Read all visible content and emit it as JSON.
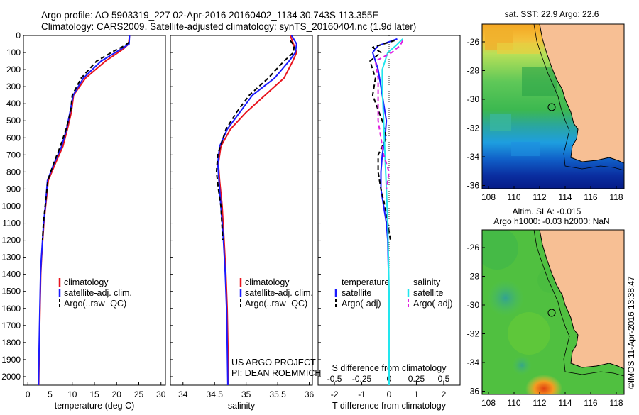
{
  "header": {
    "title_line1": "Argo profile: AO 5903319_227 02-Apr-2016 20160402_1134 30.743S 113.355E",
    "title_line2": "Climatology: CARS2009. Satellite-adjusted climatology: synTS_20160404.nc (1.9d later)"
  },
  "colors": {
    "climatology": "#e8141e",
    "satellite": "#1a1aff",
    "argo": "#000000",
    "salinity_satellite": "#22e6ee",
    "salinity_argo": "#e020e0",
    "land": "#f7bf94"
  },
  "chart_data": [
    {
      "type": "line",
      "xlabel": "temperature (deg C)",
      "ylim": [
        2050,
        0
      ],
      "xlim": [
        -1,
        31
      ],
      "x_ticks": [
        "0",
        "5",
        "10",
        "15",
        "20",
        "25",
        "30"
      ],
      "y_ticks": [
        "0",
        "100",
        "200",
        "300",
        "400",
        "500",
        "600",
        "700",
        "800",
        "900",
        "1000",
        "1100",
        "1200",
        "1300",
        "1400",
        "1500",
        "1600",
        "1700",
        "1800",
        "1900",
        "2000"
      ],
      "legend": [
        "climatology",
        "satellite-adj. clim.",
        "Argo(..raw -QC)"
      ],
      "series": [
        {
          "name": "climatology",
          "color_key": "climatology",
          "dashed": false,
          "x": [
            22.9,
            22.7,
            21.5,
            17.5,
            13.0,
            10.3,
            9.8,
            8.9,
            7.9,
            6.2,
            4.6,
            4.0,
            3.6,
            3.35,
            3.1,
            2.9,
            2.75,
            2.6,
            2.5,
            2.45
          ],
          "y": [
            0,
            50,
            80,
            150,
            250,
            350,
            450,
            550,
            650,
            750,
            850,
            1000,
            1100,
            1200,
            1300,
            1400,
            1600,
            1800,
            1950,
            2050
          ]
        },
        {
          "name": "satellite-adj. clim.",
          "color_key": "satellite",
          "dashed": false,
          "x": [
            22.9,
            22.8,
            21.0,
            16.5,
            12.5,
            10.2,
            9.5,
            8.7,
            7.6,
            5.9,
            4.4,
            3.95,
            3.55,
            3.3,
            3.05,
            2.85,
            2.7,
            2.55,
            2.45,
            2.4
          ],
          "y": [
            0,
            50,
            80,
            150,
            250,
            350,
            450,
            550,
            650,
            750,
            850,
            1000,
            1100,
            1200,
            1300,
            1400,
            1600,
            1800,
            1950,
            2050
          ]
        },
        {
          "name": "Argo(..raw -QC)",
          "color_key": "argo",
          "dashed": true,
          "x": [
            22.8,
            21.8,
            19.5,
            15.5,
            12.0,
            10.0,
            9.6,
            8.6,
            7.3,
            5.8,
            4.5,
            3.9,
            3.5,
            3.3
          ],
          "y": [
            40,
            60,
            90,
            150,
            250,
            350,
            450,
            550,
            650,
            750,
            850,
            1000,
            1100,
            1200
          ]
        }
      ]
    },
    {
      "type": "line",
      "xlabel": "salinity",
      "ylim": [
        2050,
        0
      ],
      "xlim": [
        33.8,
        36.05
      ],
      "x_ticks": [
        "34",
        "34.5",
        "35",
        "35.5",
        "36"
      ],
      "legend": [
        "climatology",
        "satellite-adj. clim.",
        "Argo(..raw -QC)"
      ],
      "annotation": [
        "US ARGO PROJECT",
        "PI: DEAN ROEMMICH"
      ],
      "series": [
        {
          "name": "climatology",
          "color_key": "climatology",
          "dashed": false,
          "x": [
            35.7,
            35.75,
            35.8,
            35.74,
            35.6,
            35.3,
            35.0,
            34.75,
            34.6,
            34.56,
            34.58,
            34.62,
            34.65,
            34.68,
            34.7,
            34.71,
            34.72
          ],
          "y": [
            0,
            50,
            100,
            150,
            250,
            350,
            450,
            550,
            650,
            750,
            850,
            1000,
            1200,
            1400,
            1600,
            1800,
            2050
          ]
        },
        {
          "name": "satellite-adj. clim.",
          "color_key": "satellite",
          "dashed": false,
          "x": [
            35.72,
            35.8,
            35.78,
            35.68,
            35.45,
            35.1,
            34.9,
            34.7,
            34.58,
            34.55,
            34.57,
            34.6,
            34.64,
            34.67,
            34.69,
            34.7,
            34.71
          ],
          "y": [
            0,
            50,
            100,
            150,
            250,
            350,
            450,
            550,
            650,
            750,
            850,
            1000,
            1200,
            1400,
            1600,
            1800,
            2050
          ]
        },
        {
          "name": "Argo(..raw -QC)",
          "color_key": "argo",
          "dashed": true,
          "x": [
            35.7,
            35.76,
            35.75,
            35.6,
            35.35,
            35.05,
            34.85,
            34.68,
            34.55,
            34.53,
            34.56,
            34.6,
            34.63
          ],
          "y": [
            30,
            60,
            100,
            150,
            250,
            350,
            450,
            550,
            700,
            800,
            900,
            1000,
            1200
          ]
        }
      ]
    },
    {
      "type": "line",
      "xlabel": "T difference from climatology",
      "ylim": [
        2050,
        0
      ],
      "xlim": [
        -2.6,
        2.6
      ],
      "x_ticks": [
        "-2",
        "-1",
        "0",
        "1",
        "2"
      ],
      "top_ticks_label": "S difference from climatology",
      "top_ticks": [
        "-0.5",
        "-0.25",
        "0",
        "0.25",
        "0.5"
      ],
      "legend_left": [
        "temperature",
        "satellite",
        "Argo(-adj)"
      ],
      "legend_right": [
        "salinity",
        "satellite",
        "Argo(-adj)"
      ],
      "series": [
        {
          "name": "satellite",
          "color_key": "satellite",
          "dashed": false,
          "x": [
            0.3,
            -0.4,
            -0.6,
            -0.4,
            -0.3,
            -0.2,
            -0.1,
            -0.15,
            -0.25,
            -0.3,
            -0.3,
            -0.2,
            -0.1,
            -0.05,
            -0.02,
            0,
            0
          ],
          "y": [
            20,
            60,
            100,
            200,
            300,
            400,
            500,
            600,
            700,
            800,
            900,
            1000,
            1100,
            1200,
            1400,
            1700,
            2050
          ]
        },
        {
          "name": "Argo(-adj)",
          "color_key": "argo",
          "dashed": true,
          "x": [
            0.2,
            -0.6,
            -0.3,
            -0.7,
            -0.5,
            -0.6,
            -0.25,
            -0.1,
            -0.4,
            -0.4,
            -0.3,
            -0.15,
            0.05
          ],
          "y": [
            30,
            70,
            100,
            150,
            250,
            350,
            500,
            600,
            700,
            800,
            900,
            1000,
            1200
          ]
        },
        {
          "name": "salinity satellite",
          "color_key": "salinity_satellite",
          "dashed": false,
          "x": [
            0.5,
            0.25,
            -0.05,
            -0.25,
            -0.25,
            -0.2,
            -0.15,
            -0.1,
            -0.05,
            0,
            0
          ],
          "y": [
            20,
            60,
            100,
            200,
            300,
            500,
            700,
            900,
            1100,
            1500,
            2050
          ]
        },
        {
          "name": "salinity Argo(-adj)",
          "color_key": "salinity_argo",
          "dashed": true,
          "x": [
            0.5,
            0.4,
            0.1,
            -0.5,
            -0.4,
            -0.4,
            -0.2,
            0,
            -0.1
          ],
          "y": [
            30,
            60,
            100,
            150,
            250,
            500,
            700,
            800,
            900
          ]
        }
      ]
    },
    {
      "type": "heatmap",
      "title": "sat. SST: 22.9 Argo: 22.6",
      "x_ticks": [
        "108",
        "110",
        "112",
        "114",
        "116",
        "118"
      ],
      "y_ticks": [
        "-26",
        "-28",
        "-30",
        "-32",
        "-34",
        "-36"
      ],
      "marker": {
        "lon": 113.355,
        "lat": -30.743
      }
    },
    {
      "type": "heatmap",
      "title_line1": "Altim. SLA: -0.015",
      "title_line2": "Argo h1000: -0.03 h2000: NaN",
      "x_ticks": [
        "108",
        "110",
        "112",
        "114",
        "116",
        "118"
      ],
      "y_ticks": [
        "-26",
        "-28",
        "-30",
        "-32",
        "-34",
        "-36"
      ],
      "marker": {
        "lon": 113.355,
        "lat": -30.743
      }
    }
  ],
  "credit": "©IMOS 11-Apr-2016 13:38:47"
}
